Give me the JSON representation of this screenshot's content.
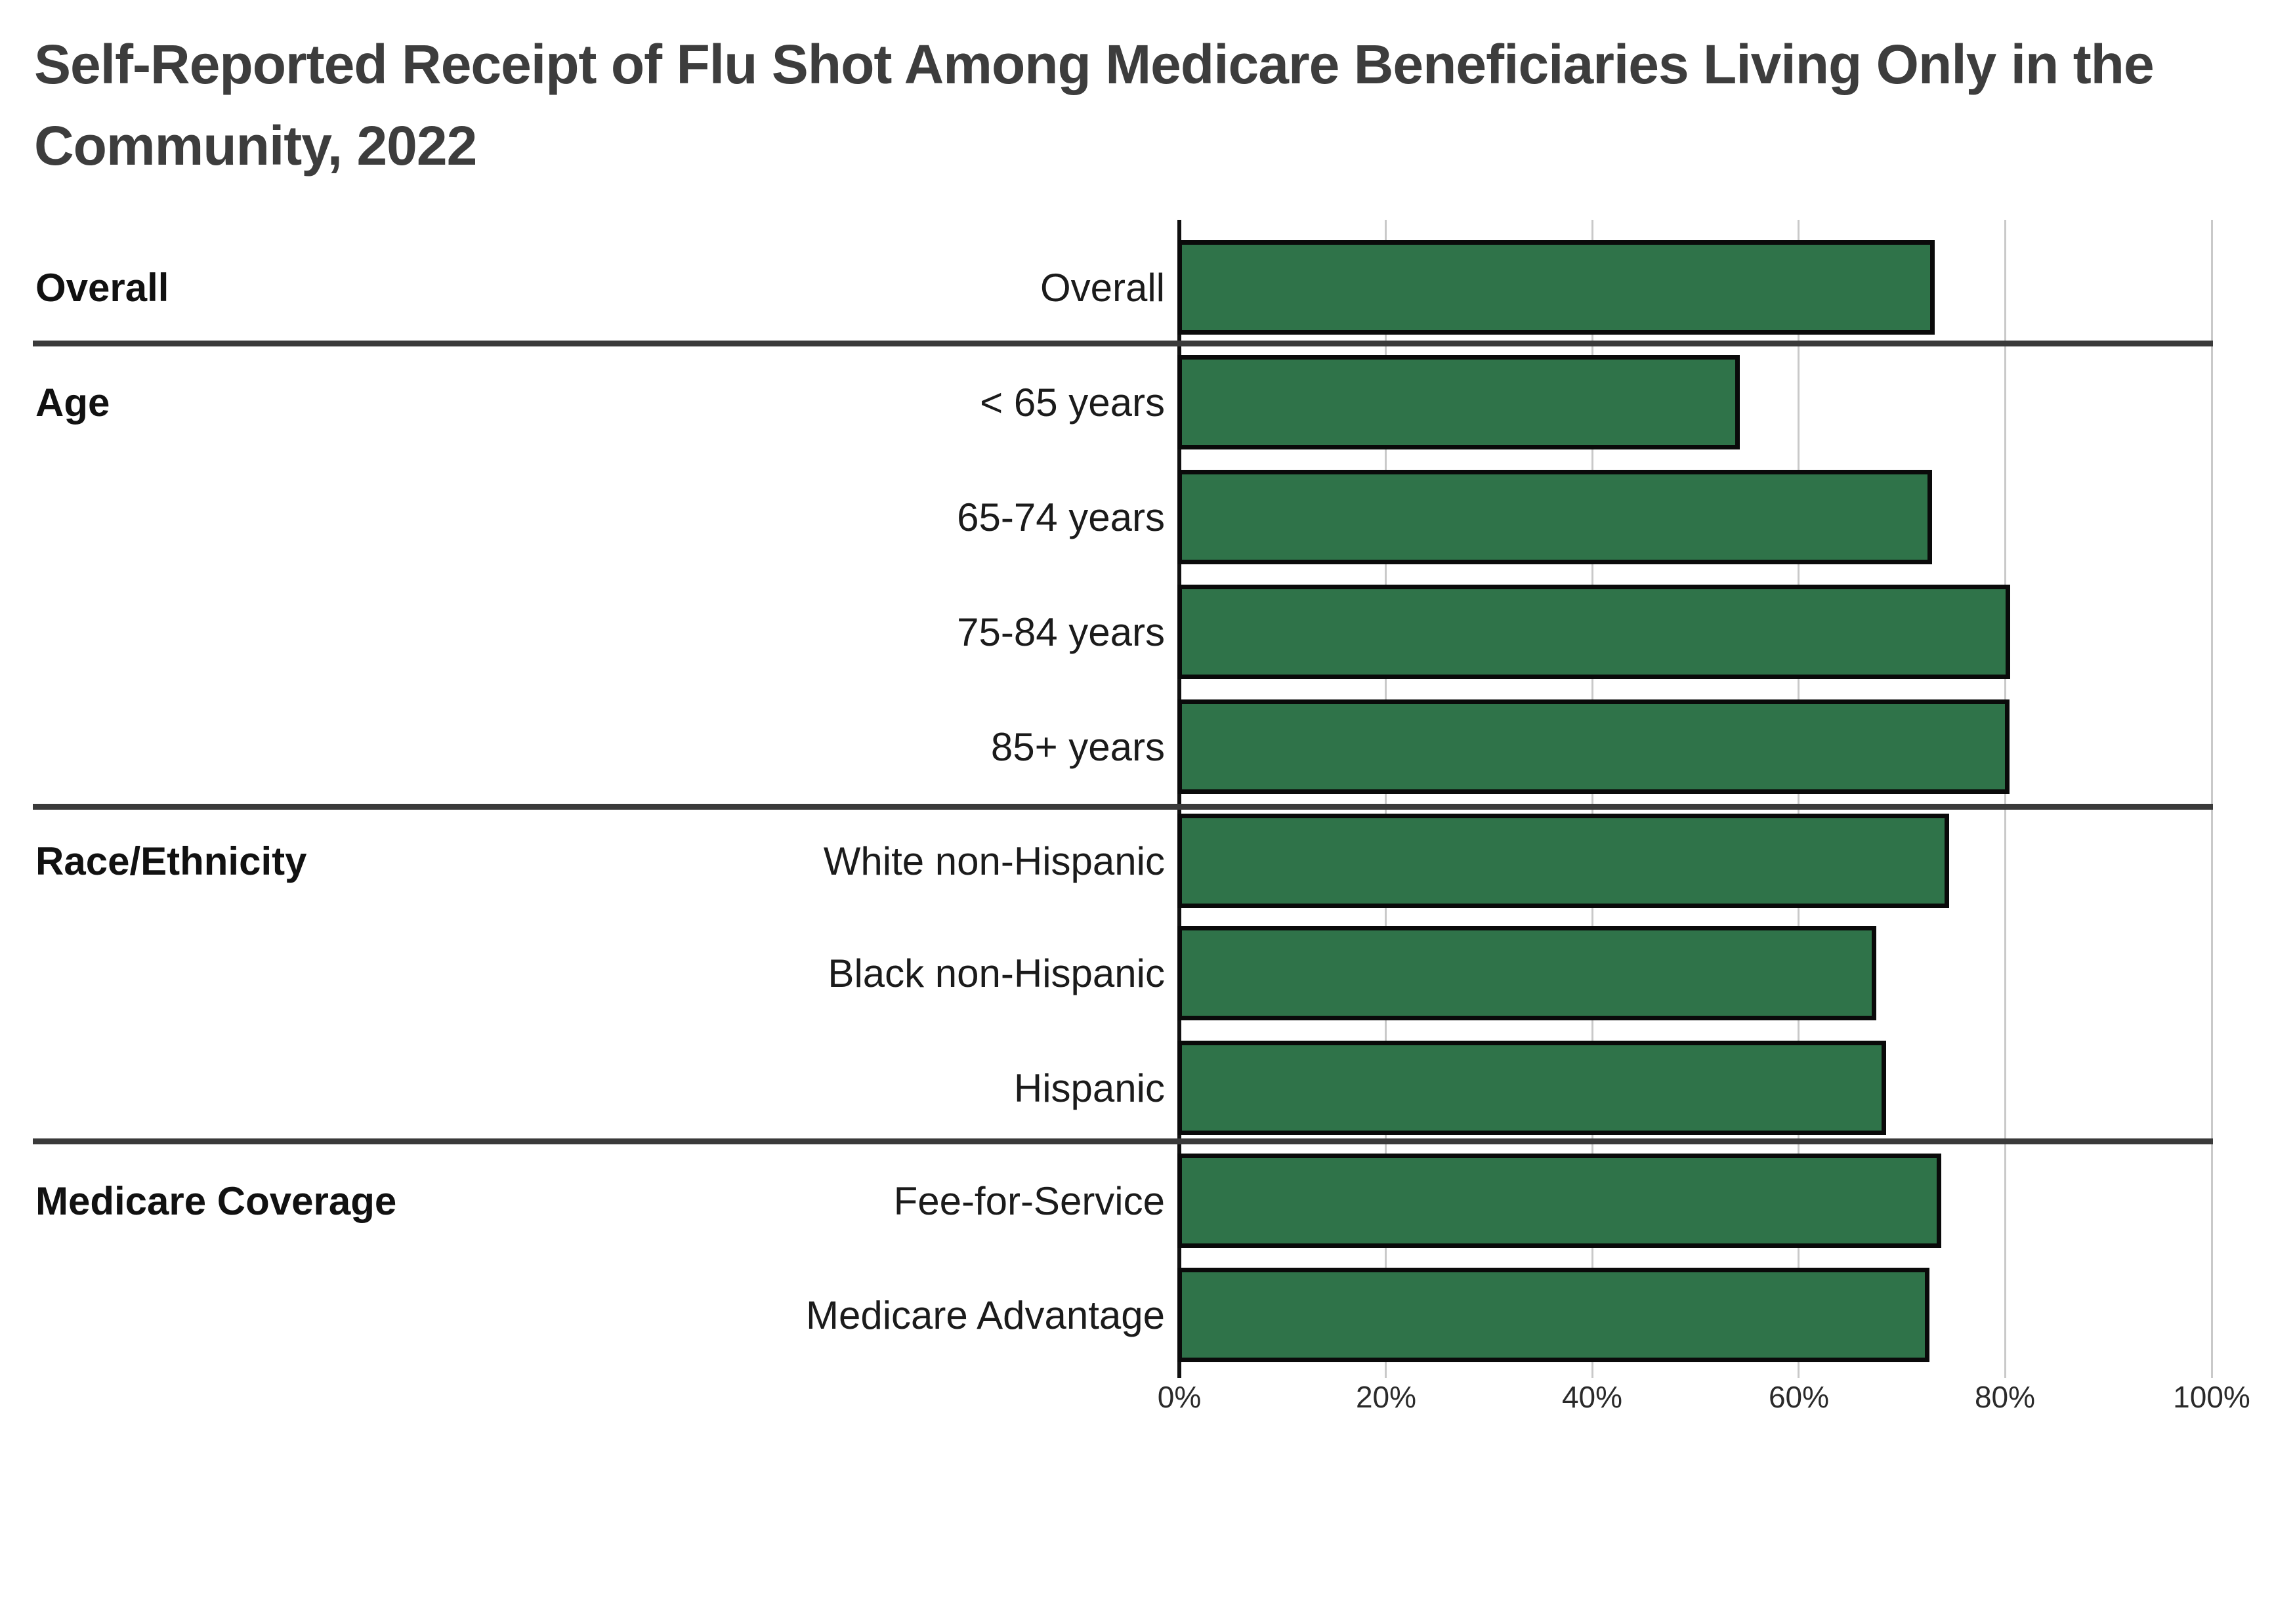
{
  "title": {
    "line1": "Self-Reported Receipt of Flu Shot Among Medicare Beneficiaries Living Only in the",
    "line2": "Community, 2022",
    "full": "Self-Reported Receipt of Flu Shot Among Medicare Beneficiaries Living Only in the Community, 2022"
  },
  "chart_data": {
    "type": "bar",
    "orientation": "horizontal",
    "title": "Self-Reported Receipt of Flu Shot Among Medicare Beneficiaries Living Only in the Community, 2022",
    "xlabel": "",
    "ylabel": "",
    "x_axis": {
      "ticks": [
        "0%",
        "20%",
        "40%",
        "60%",
        "80%",
        "100%"
      ],
      "min": 0,
      "max": 100,
      "grid": true,
      "grid_interval": 20
    },
    "unit": "percent",
    "legend": null,
    "groups": [
      {
        "group": "Overall",
        "rows": [
          {
            "label": "Overall",
            "value": 73.0
          }
        ]
      },
      {
        "group": "Age",
        "rows": [
          {
            "label": "< 65 years",
            "value": 54.1
          },
          {
            "label": "65-74 years",
            "value": 72.7
          },
          {
            "label": "75-84 years",
            "value": 80.3
          },
          {
            "label": "85+ years",
            "value": 80.2
          }
        ]
      },
      {
        "group": "Race/Ethnicity",
        "rows": [
          {
            "label": "White non-Hispanic",
            "value": 74.4
          },
          {
            "label": "Black non-Hispanic",
            "value": 67.3
          },
          {
            "label": "Hispanic",
            "value": 68.3
          }
        ]
      },
      {
        "group": "Medicare Coverage",
        "rows": [
          {
            "label": "Fee-for-Service",
            "value": 73.6
          },
          {
            "label": "Medicare Advantage",
            "value": 72.5
          }
        ]
      }
    ],
    "colors": {
      "bar_fill": "#2f7349",
      "bar_border": "#0a0a0a",
      "gridline": "#c9c9c9",
      "axis_line": "#111111",
      "separator": "#3a3a3a",
      "title_text": "#3d3d3d",
      "label_text": "#1b1b1b",
      "background": "#ffffff"
    }
  }
}
